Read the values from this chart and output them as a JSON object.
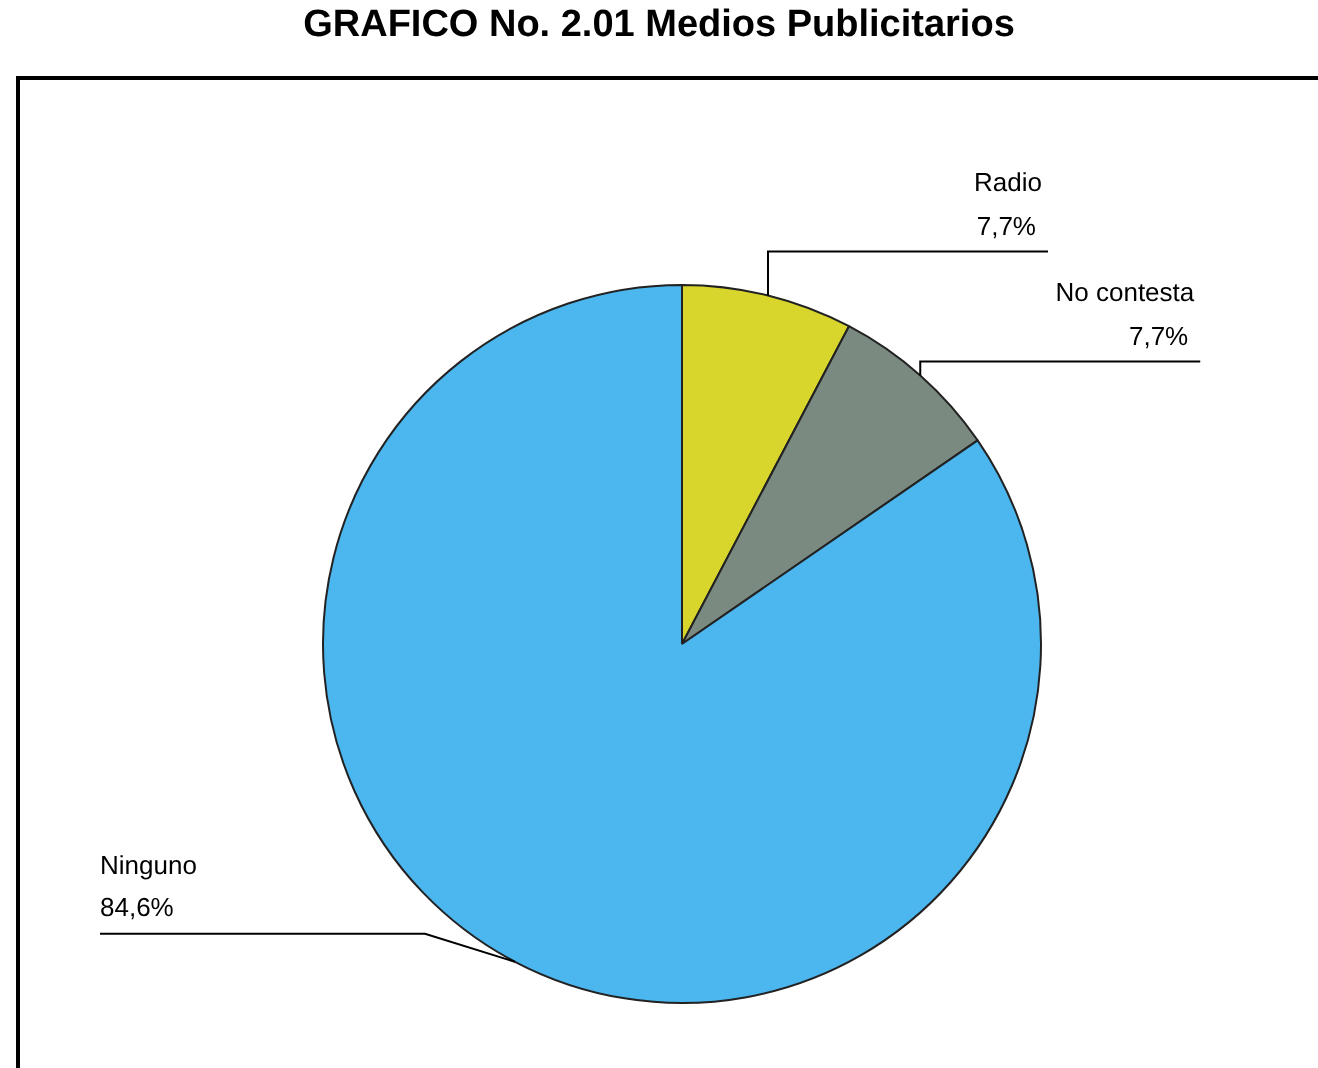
{
  "chart_data": {
    "type": "pie",
    "title": "GRAFICO No. 2.01 Medios Publicitarios",
    "categories": [
      "Radio",
      "No contesta",
      "Ninguno"
    ],
    "values": [
      7.7,
      7.7,
      84.6
    ],
    "value_labels": [
      "7,7%",
      "7,7%",
      "84,6%"
    ],
    "colors": [
      "#d8d62c",
      "#7b8a80",
      "#4cb6ee"
    ],
    "legend": false
  }
}
